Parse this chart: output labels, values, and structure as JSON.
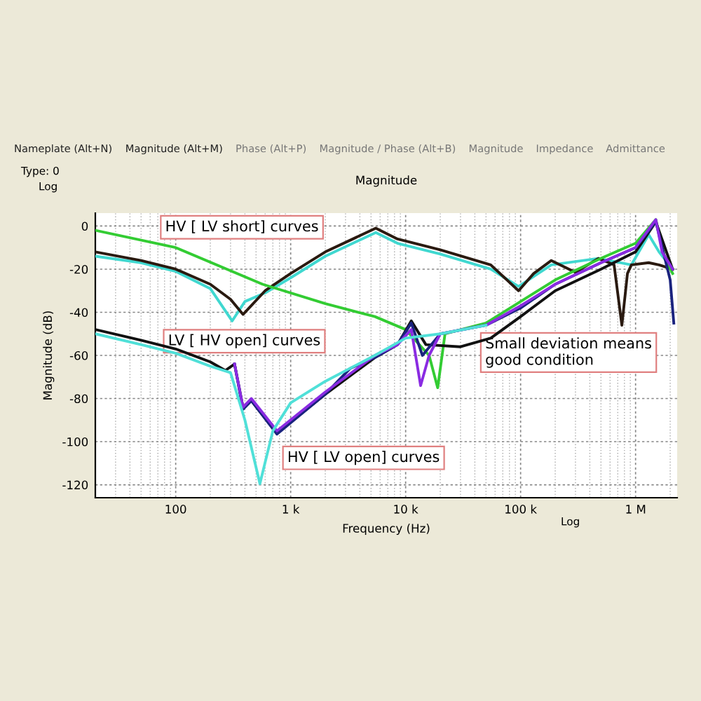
{
  "chart_data": {
    "type": "line",
    "title": "Magnitude",
    "xlabel": "Frequency (Hz)",
    "ylabel": "Magnitude (dB)",
    "log": "x",
    "grid": true,
    "line_style": "solid",
    "marker": "none",
    "xlim": [
      20,
      2300000
    ],
    "ylim": [
      -126,
      6
    ],
    "xticks": [
      {
        "value": 100,
        "label": "100"
      },
      {
        "value": 1000,
        "label": "1 k"
      },
      {
        "value": 10000,
        "label": "10 k"
      },
      {
        "value": 100000,
        "label": "100 k"
      },
      {
        "value": 1000000,
        "label": "1 M"
      }
    ],
    "yticks": [
      0,
      -20,
      -40,
      -60,
      -80,
      -100,
      -120
    ],
    "series": [
      {
        "color": "#40d8d0",
        "x": [
          20,
          50,
          100,
          200,
          310,
          400,
          600,
          1000,
          2000,
          5500,
          8500,
          20000,
          55000,
          96000,
          185000,
          475000,
          920000,
          1300000,
          1600000,
          2100000
        ],
        "values": [
          -14,
          -17,
          -21,
          -29,
          -44,
          -35,
          -31,
          -24,
          -14,
          -3,
          -8,
          -13,
          -20,
          -28,
          -18,
          -15,
          -18,
          -4,
          -12,
          -20
        ]
      },
      {
        "color": "#2a1a10",
        "x": [
          20,
          50,
          100,
          200,
          300,
          385,
          600,
          1000,
          2000,
          5500,
          8500,
          20000,
          55000,
          96000,
          130000,
          185000,
          300000,
          475000,
          650000,
          760000,
          850000,
          920000,
          1300000,
          1600000,
          2100000
        ],
        "values": [
          -12,
          -16,
          -20,
          -27,
          -34,
          -41,
          -30,
          -22,
          -12,
          -1,
          -6,
          -11,
          -18,
          -30,
          -22,
          -16,
          -21.5,
          -15,
          -18,
          -46,
          -22,
          -18,
          -17,
          -18,
          -20
        ]
      },
      {
        "color": "#33cc33",
        "x": [
          20,
          100,
          570,
          2000,
          5400,
          10000,
          16000,
          19000,
          22000,
          50000,
          100000,
          200000,
          500000,
          1000000,
          1500000,
          1800000,
          2100000
        ],
        "values": [
          -2,
          -10,
          -27,
          -36,
          -42,
          -48,
          -60,
          -75,
          -50,
          -45,
          -35,
          -25,
          -15,
          -8,
          3,
          -15,
          -22
        ]
      },
      {
        "color": "#111111",
        "x": [
          20,
          50,
          100,
          200,
          270,
          325,
          385,
          455,
          760,
          2000,
          5400,
          8500,
          11200,
          15000,
          30000,
          55000,
          100000,
          200000,
          500000,
          1000000,
          1500000,
          2100000
        ],
        "values": [
          -48,
          -53,
          -57,
          -63,
          -67,
          -64,
          -84,
          -81,
          -96,
          -78,
          -61,
          -55,
          -44,
          -55,
          -56,
          -52,
          -42,
          -30,
          -20,
          -12,
          2,
          -20
        ]
      },
      {
        "color": "#1a237e",
        "x": [
          325,
          385,
          455,
          760,
          2000,
          3300,
          5400,
          8500,
          11200,
          14000,
          20000,
          50000,
          100000,
          200000,
          500000,
          1000000,
          1500000,
          2000000,
          2150000
        ],
        "values": [
          -64,
          -85,
          -81,
          -96.5,
          -78,
          -66,
          -61,
          -55,
          -45,
          -60,
          -50,
          -46,
          -38,
          -27,
          -17,
          -10,
          2,
          -25,
          -45
        ]
      },
      {
        "color": "#8a2be2",
        "x": [
          325,
          385,
          455,
          760,
          2000,
          5400,
          8500,
          11200,
          13500,
          16000,
          20000,
          50000,
          100000,
          200000,
          500000,
          1000000,
          1500000,
          1700000,
          2100000
        ],
        "values": [
          -64,
          -84,
          -80,
          -95,
          -77,
          -60,
          -55,
          -48,
          -74,
          -60,
          -50,
          -46,
          -37,
          -27,
          -17,
          -10,
          3,
          -12,
          -20
        ]
      },
      {
        "color": "#50e0d8",
        "x": [
          20,
          50,
          100,
          200,
          300,
          400,
          540,
          700,
          1000,
          2000,
          5400,
          10000,
          20000,
          50000
        ],
        "values": [
          -50,
          -55,
          -59,
          -65,
          -68,
          -90,
          -119.5,
          -95,
          -82,
          -72,
          -60,
          -52,
          -50,
          -46
        ]
      }
    ],
    "annotations": [
      "HV [ LV short] curves",
      "LV [ HV open] curves",
      "HV [ LV open] curves",
      "Small deviation means\ngood condition",
      "Nameplate (Alt+N)",
      "Magnitude (Alt+M)",
      "Phase (Alt+P)",
      "Magnitude / Phase (Alt+B)",
      "Magnitude",
      "Impedance",
      "Admittance",
      "Type: 0",
      "Log",
      "Log"
    ]
  }
}
